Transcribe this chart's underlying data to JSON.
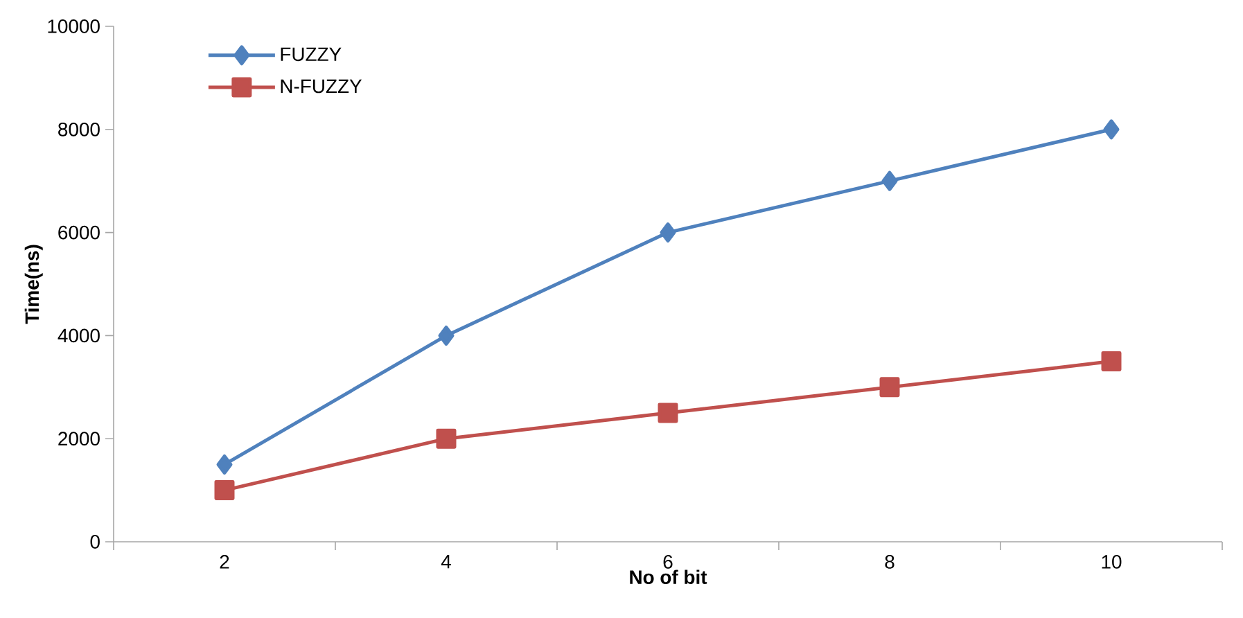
{
  "chart_data": {
    "type": "line",
    "xlabel": "No of bit",
    "ylabel": "Time(ns)",
    "categories": [
      "2",
      "4",
      "6",
      "8",
      "10"
    ],
    "series": [
      {
        "name": "FUZZY",
        "color": "#4f81bd",
        "marker": "diamond",
        "values": [
          1500,
          4000,
          6000,
          7000,
          8000
        ]
      },
      {
        "name": "N-FUZZY",
        "color": "#c0504d",
        "marker": "square",
        "values": [
          1000,
          2000,
          2500,
          3000,
          3500
        ]
      }
    ],
    "ylim": [
      0,
      10000
    ],
    "yticks": [
      0,
      2000,
      4000,
      6000,
      8000,
      10000
    ],
    "grid": false,
    "legend": "top left"
  }
}
